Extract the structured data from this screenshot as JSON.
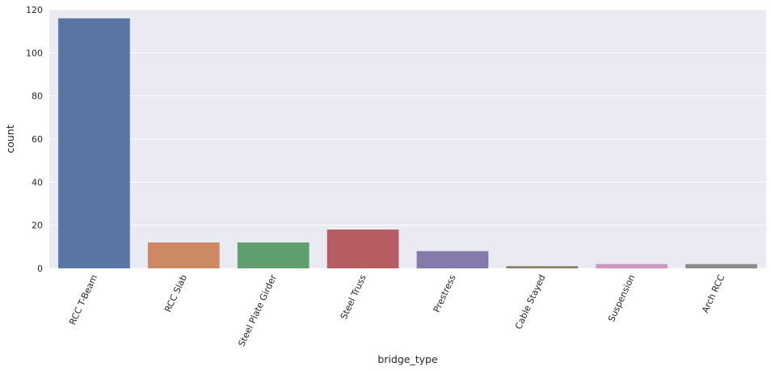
{
  "chart_data": {
    "type": "bar",
    "categories": [
      "RCC T-Beam",
      "RCC Slab",
      "Steel Plate Girder",
      "Steel Truss",
      "Prestress",
      "Cable Stayed",
      "Suspension",
      "Arch RCC"
    ],
    "values": [
      116,
      12,
      12,
      18,
      8,
      1,
      2,
      2
    ],
    "colors": [
      "#5975a4",
      "#cc8963",
      "#5f9e6e",
      "#b55d60",
      "#857aab",
      "#8d7866",
      "#d095bf",
      "#8c8c8c"
    ],
    "xlabel": "bridge_type",
    "ylabel": "count",
    "ylim": [
      0,
      120
    ],
    "yticks": [
      0,
      20,
      40,
      60,
      80,
      100,
      120
    ],
    "grid": true,
    "background": "#eaeaf2"
  }
}
